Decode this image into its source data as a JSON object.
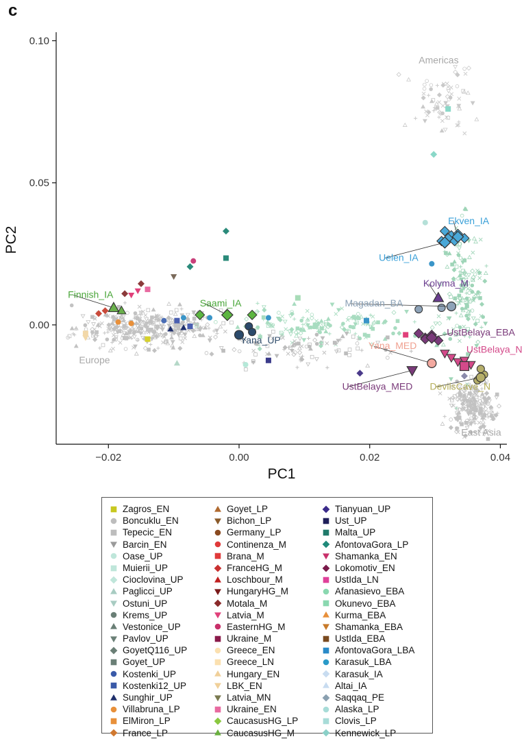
{
  "panel_label": "c",
  "chart_data": {
    "type": "scatter",
    "xlabel": "PC1",
    "ylabel": "PC2",
    "xlim": [
      -0.028,
      0.041
    ],
    "ylim": [
      -0.042,
      0.103
    ],
    "xticks": [
      -0.02,
      0.0,
      0.02,
      0.04
    ],
    "xtick_labels": [
      "−0.02",
      "0.00",
      "0.02",
      "0.04"
    ],
    "yticks": [
      0.0,
      0.05,
      0.1
    ],
    "ytick_labels": [
      "0.00",
      "0.05",
      "0.10"
    ],
    "grid": false,
    "legend_position": "bottom",
    "region_labels": [
      {
        "text": "Americas",
        "x": 0.0275,
        "y": 0.092
      },
      {
        "text": "Europe",
        "x": -0.0245,
        "y": -0.0135
      },
      {
        "text": "East Asia",
        "x": 0.034,
        "y": -0.039
      }
    ],
    "background_clouds": [
      {
        "name": "europe",
        "color": "#c2c2c2",
        "cx": -0.014,
        "cy": -0.001,
        "sx": 0.0055,
        "sy": 0.0035,
        "n": 340
      },
      {
        "name": "eastasia",
        "color": "#c2c2c2",
        "cx": 0.0355,
        "cy": -0.029,
        "sx": 0.0018,
        "sy": 0.0045,
        "n": 220
      },
      {
        "name": "americas",
        "color": "#c9c9c9",
        "cx": 0.031,
        "cy": 0.078,
        "sx": 0.0025,
        "sy": 0.006,
        "n": 70
      },
      {
        "name": "siberia",
        "color": "#9fd5b8",
        "cx": 0.0345,
        "cy": 0.012,
        "sx": 0.0015,
        "sy": 0.011,
        "n": 160
      },
      {
        "name": "cline",
        "color": "#a8dcc0",
        "cx": 0.012,
        "cy": 0.0,
        "sx": 0.0075,
        "sy": 0.0028,
        "n": 160
      },
      {
        "name": "cline-grey",
        "color": "#bdbdbd",
        "cx": 0.008,
        "cy": -0.008,
        "sx": 0.007,
        "sy": 0.003,
        "n": 90
      }
    ],
    "highlighted": [
      {
        "label": "Finnish_IA",
        "x": -0.0192,
        "y": 0.006,
        "marker": "triangle",
        "color": "#6ab04c",
        "label_color": "#4aa63a",
        "lx": -0.0262,
        "ly": 0.0095
      },
      {
        "label": "Saami_IA",
        "x": -0.0018,
        "y": 0.0035,
        "marker": "diamond",
        "color": "#5cb541",
        "label_color": "#4aa63a",
        "lx": -0.006,
        "ly": 0.0065
      },
      {
        "label": "Yana_UP",
        "x": 0.0,
        "y": -0.0035,
        "marker": "circle",
        "color": "#2b4a6b",
        "label_color": "#34506e",
        "lx": 0.0002,
        "ly": -0.0065
      },
      {
        "label": "Ekven_IA",
        "x": 0.0335,
        "y": 0.031,
        "marker": "diamond",
        "color": "#4aa8d8",
        "label_color": "#3aa0d8",
        "lx": 0.032,
        "ly": 0.0355
      },
      {
        "label": "Uelen_IA",
        "x": 0.0315,
        "y": 0.029,
        "marker": "diamond",
        "color": "#4aa8d8",
        "label_color": "#3aa0d8",
        "lx": 0.0214,
        "ly": 0.0225
      },
      {
        "label": "Kolyma_M",
        "x": 0.0305,
        "y": 0.0095,
        "marker": "triangle",
        "color": "#6a3d8f",
        "label_color": "#6a3d8f",
        "lx": 0.0282,
        "ly": 0.0135
      },
      {
        "label": "Magadan_BA",
        "x": 0.0325,
        "y": 0.0065,
        "marker": "circle",
        "color": "#8ea3b8",
        "label_color": "#8aa0b5",
        "lx": 0.0162,
        "ly": 0.0065
      },
      {
        "label": "UstBelaya_EBA",
        "x": 0.0295,
        "y": -0.0045,
        "marker": "diamond",
        "color": "#7a3a7a",
        "label_color": "#7a3a7a",
        "lx": 0.0318,
        "ly": -0.0038
      },
      {
        "label": "Yana_MED",
        "x": 0.0295,
        "y": -0.0135,
        "marker": "circle",
        "color": "#f3a9a0",
        "label_color": "#f0a090",
        "lx": 0.0198,
        "ly": -0.0085
      },
      {
        "label": "UstBelaya_N",
        "x": 0.0345,
        "y": -0.0145,
        "marker": "square",
        "color": "#d44a8a",
        "label_color": "#d44a8a",
        "lx": 0.0348,
        "ly": -0.0098
      },
      {
        "label": "UstBelaya_MED",
        "x": 0.0265,
        "y": -0.016,
        "marker": "triangle-down",
        "color": "#7a3a7a",
        "label_color": "#7a3a7a",
        "lx": 0.0158,
        "ly": -0.0228
      },
      {
        "label": "DevilsCave_N",
        "x": 0.037,
        "y": -0.0185,
        "marker": "circle",
        "color": "#b5ae6a",
        "label_color": "#b5ae5a",
        "lx": 0.0292,
        "ly": -0.0228
      }
    ],
    "highlight_clusters": [
      {
        "marker": "diamond",
        "color": "#4aa8d8",
        "points": [
          [
            0.0315,
            0.033
          ],
          [
            0.0325,
            0.0315
          ],
          [
            0.0335,
            0.032
          ],
          [
            0.0345,
            0.0305
          ],
          [
            0.031,
            0.0295
          ],
          [
            0.033,
            0.0295
          ],
          [
            0.032,
            0.0305
          ]
        ]
      },
      {
        "marker": "diamond",
        "color": "#7a3a7a",
        "points": [
          [
            0.0275,
            -0.003
          ],
          [
            0.0285,
            -0.0045
          ],
          [
            0.0295,
            -0.0035
          ],
          [
            0.0305,
            -0.0055
          ],
          [
            0.0285,
            -0.005
          ]
        ]
      },
      {
        "marker": "circle",
        "color": "#b5ae6a",
        "points": [
          [
            0.0365,
            -0.0195
          ],
          [
            0.0375,
            -0.0175
          ],
          [
            0.037,
            -0.0155
          ]
        ]
      },
      {
        "marker": "triangle-down",
        "color": "#d44a8a",
        "points": [
          [
            0.0325,
            -0.0115
          ],
          [
            0.0335,
            -0.013
          ],
          [
            0.0345,
            -0.0125
          ],
          [
            0.0315,
            -0.01
          ],
          [
            0.0355,
            -0.014
          ]
        ]
      },
      {
        "marker": "circle",
        "color": "#8ea3b8",
        "points": [
          [
            0.0275,
            0.0055
          ],
          [
            0.031,
            0.006
          ]
        ]
      },
      {
        "marker": "circle",
        "color": "#2b4a6b",
        "points": [
          [
            0.0015,
            -0.0005
          ],
          [
            0.002,
            -0.0025
          ]
        ]
      },
      {
        "marker": "diamond",
        "color": "#5cb541",
        "points": [
          [
            -0.006,
            0.0035
          ],
          [
            0.002,
            0.0035
          ]
        ]
      },
      {
        "marker": "triangle",
        "color": "#6ab04c",
        "points": [
          [
            -0.018,
            0.005
          ]
        ]
      }
    ],
    "scattered_points": [
      {
        "x": -0.0215,
        "y": 0.004,
        "marker": "diamond",
        "color": "#c94a3a"
      },
      {
        "x": -0.0205,
        "y": 0.005,
        "marker": "diamond",
        "color": "#c94a3a"
      },
      {
        "x": -0.0175,
        "y": 0.011,
        "marker": "diamond",
        "color": "#8b3a3a"
      },
      {
        "x": -0.015,
        "y": 0.0145,
        "marker": "diamond",
        "color": "#8b3a3a"
      },
      {
        "x": -0.0165,
        "y": 0.0105,
        "marker": "triangle-down",
        "color": "#e0407a"
      },
      {
        "x": -0.0155,
        "y": 0.012,
        "marker": "triangle-down",
        "color": "#e0407a"
      },
      {
        "x": -0.014,
        "y": 0.0125,
        "marker": "square",
        "color": "#e86aa0"
      },
      {
        "x": -0.0185,
        "y": 0.001,
        "marker": "circle",
        "color": "#e8903a"
      },
      {
        "x": -0.0165,
        "y": 0.0005,
        "marker": "circle",
        "color": "#e8903a"
      },
      {
        "x": -0.014,
        "y": -0.005,
        "marker": "square",
        "color": "#d6d12a"
      },
      {
        "x": -0.0115,
        "y": 0.0015,
        "marker": "circle",
        "color": "#4a6db5"
      },
      {
        "x": -0.0105,
        "y": -0.0015,
        "marker": "triangle",
        "color": "#1f2f6b"
      },
      {
        "x": -0.0085,
        "y": -0.001,
        "marker": "triangle",
        "color": "#1f2f6b"
      },
      {
        "x": -0.0095,
        "y": 0.0015,
        "marker": "square",
        "color": "#4a5fb0"
      },
      {
        "x": -0.0075,
        "y": -0.0005,
        "marker": "square",
        "color": "#4a5fb0"
      },
      {
        "x": -0.0085,
        "y": 0.0025,
        "marker": "circle",
        "color": "#3a95c8"
      },
      {
        "x": -0.0045,
        "y": 0.0025,
        "marker": "circle",
        "color": "#3a95c8"
      },
      {
        "x": -0.01,
        "y": 0.017,
        "marker": "triangle-down",
        "color": "#7a6a5a"
      },
      {
        "x": -0.0075,
        "y": 0.0205,
        "marker": "diamond",
        "color": "#2a8a7a"
      },
      {
        "x": -0.007,
        "y": 0.0225,
        "marker": "circle",
        "color": "#c8407a"
      },
      {
        "x": -0.002,
        "y": 0.033,
        "marker": "diamond",
        "color": "#2a8a7a"
      },
      {
        "x": -0.002,
        "y": 0.0235,
        "marker": "square",
        "color": "#2a8a7a"
      },
      {
        "x": -0.0095,
        "y": -0.0135,
        "marker": "triangle",
        "color": "#b5d8c8"
      },
      {
        "x": 0.001,
        "y": -0.014,
        "marker": "circle",
        "color": "#b5e8d8"
      },
      {
        "x": 0.0045,
        "y": -0.0125,
        "marker": "square",
        "color": "#3a3a8a"
      },
      {
        "x": 0.0045,
        "y": 0.0025,
        "marker": "circle",
        "color": "#3a95c8"
      },
      {
        "x": 0.009,
        "y": 0.0095,
        "marker": "square",
        "color": "#a8dcb8"
      },
      {
        "x": 0.0195,
        "y": 0.0015,
        "marker": "square",
        "color": "#3a95c8"
      },
      {
        "x": 0.0185,
        "y": -0.017,
        "marker": "diamond",
        "color": "#4a3a8a"
      },
      {
        "x": 0.0255,
        "y": -0.0035,
        "marker": "square",
        "color": "#e0407a"
      },
      {
        "x": 0.0295,
        "y": 0.0215,
        "marker": "circle",
        "color": "#3a95c8"
      },
      {
        "x": 0.0285,
        "y": 0.036,
        "marker": "circle",
        "color": "#b5e0d8"
      },
      {
        "x": 0.0298,
        "y": 0.06,
        "marker": "diamond",
        "color": "#8ad8c8"
      },
      {
        "x": 0.032,
        "y": 0.076,
        "marker": "square",
        "color": "#8ad8c8"
      },
      {
        "x": 0.0345,
        "y": -0.018,
        "marker": "diamond",
        "color": "#8a8aaa"
      },
      {
        "x": -0.0235,
        "y": -0.003,
        "marker": "square",
        "color": "#f2d8a8"
      },
      {
        "x": -0.0235,
        "y": -0.0045,
        "marker": "triangle-down",
        "color": "#f2d8a8"
      }
    ]
  },
  "legend": {
    "columns": [
      [
        {
          "label": "Zagros_EN",
          "marker": "square",
          "color": "#c8c820"
        },
        {
          "label": "Boncuklu_EN",
          "marker": "circle",
          "color": "#bdbdbd"
        },
        {
          "label": "Tepecic_EN",
          "marker": "square",
          "color": "#bdbdbd"
        },
        {
          "label": "Barcin_EN",
          "marker": "triangle-down",
          "color": "#9a9a9a"
        },
        {
          "label": "Oase_UP",
          "marker": "circle",
          "color": "#bfe6da"
        },
        {
          "label": "Muierii_UP",
          "marker": "square",
          "color": "#bfe6da"
        },
        {
          "label": "Cioclovina_UP",
          "marker": "diamond",
          "color": "#bfe6da"
        },
        {
          "label": "Paglicci_UP",
          "marker": "triangle",
          "color": "#a8ccc2"
        },
        {
          "label": "Ostuni_UP",
          "marker": "triangle-down",
          "color": "#a8ccc2"
        },
        {
          "label": "Krems_UP",
          "marker": "circle",
          "color": "#6a7f76"
        },
        {
          "label": "Vestonice_UP",
          "marker": "triangle",
          "color": "#6a7f76"
        },
        {
          "label": "Pavlov_UP",
          "marker": "triangle-down",
          "color": "#6a7f76"
        },
        {
          "label": "GoyetQ116_UP",
          "marker": "diamond",
          "color": "#6a7f76"
        },
        {
          "label": "Goyet_UP",
          "marker": "square",
          "color": "#6a7f76"
        },
        {
          "label": "Kostenki_UP",
          "marker": "circle",
          "color": "#3a5aa8"
        },
        {
          "label": "Kostenki12_UP",
          "marker": "square",
          "color": "#3a5aa8"
        },
        {
          "label": "Sunghir_UP",
          "marker": "triangle",
          "color": "#1f2f6b"
        },
        {
          "label": "Villabruna_LP",
          "marker": "circle",
          "color": "#e8903a"
        },
        {
          "label": "ElMiron_LP",
          "marker": "square",
          "color": "#e8903a"
        },
        {
          "label": "France_LP",
          "marker": "diamond",
          "color": "#d07830"
        }
      ],
      [
        {
          "label": "Goyet_LP",
          "marker": "triangle",
          "color": "#b06a30"
        },
        {
          "label": "Bichon_LP",
          "marker": "triangle-down",
          "color": "#8a5a2a"
        },
        {
          "label": "Germany_LP",
          "marker": "circle",
          "color": "#8a4a20"
        },
        {
          "label": "Continenza_M",
          "marker": "circle",
          "color": "#e03a3a"
        },
        {
          "label": "Brana_M",
          "marker": "square",
          "color": "#e03a3a"
        },
        {
          "label": "FranceHG_M",
          "marker": "diamond",
          "color": "#c93030"
        },
        {
          "label": "Loschbour_M",
          "marker": "triangle",
          "color": "#c02020"
        },
        {
          "label": "HungaryHG_M",
          "marker": "triangle-down",
          "color": "#7a1a1a"
        },
        {
          "label": "Motala_M",
          "marker": "diamond",
          "color": "#8a2a2a"
        },
        {
          "label": "Latvia_M",
          "marker": "triangle-down",
          "color": "#e0407a"
        },
        {
          "label": "EasternHG_M",
          "marker": "circle",
          "color": "#c8306a"
        },
        {
          "label": "Ukraine_M",
          "marker": "square",
          "color": "#8a1a4a"
        },
        {
          "label": "Greece_EN",
          "marker": "circle",
          "color": "#fbe0b0"
        },
        {
          "label": "Greece_LN",
          "marker": "square",
          "color": "#fbe0b0"
        },
        {
          "label": "Hungary_EN",
          "marker": "triangle",
          "color": "#f0d09a"
        },
        {
          "label": "LBK_EN",
          "marker": "triangle-down",
          "color": "#f0d09a"
        },
        {
          "label": "Latvia_MN",
          "marker": "triangle-down",
          "color": "#7a7a50"
        },
        {
          "label": "Ukraine_EN",
          "marker": "square",
          "color": "#e86aa0"
        },
        {
          "label": "CaucasusHG_LP",
          "marker": "diamond",
          "color": "#8ac840"
        },
        {
          "label": "CaucasusHG_M",
          "marker": "triangle",
          "color": "#6ab040"
        }
      ],
      [
        {
          "label": "Tianyuan_UP",
          "marker": "diamond",
          "color": "#3a2a8a"
        },
        {
          "label": "Ust_UP",
          "marker": "square",
          "color": "#1f1f5a"
        },
        {
          "label": "Malta_UP",
          "marker": "square",
          "color": "#1f7a6a"
        },
        {
          "label": "AfontovaGora_LP",
          "marker": "diamond",
          "color": "#1f8a7a"
        },
        {
          "label": "Shamanka_EN",
          "marker": "triangle-down",
          "color": "#c8306a"
        },
        {
          "label": "Lokomotiv_EN",
          "marker": "diamond",
          "color": "#7a1a4a"
        },
        {
          "label": "UstIda_LN",
          "marker": "square",
          "color": "#e0409a"
        },
        {
          "label": "Afanasievo_EBA",
          "marker": "circle",
          "color": "#8ad8b0"
        },
        {
          "label": "Okunevo_EBA",
          "marker": "square",
          "color": "#8ad8b0"
        },
        {
          "label": "Kurma_EBA",
          "marker": "triangle",
          "color": "#e8903a"
        },
        {
          "label": "Shamanka_EBA",
          "marker": "triangle-down",
          "color": "#c87a2a"
        },
        {
          "label": "UstIda_EBA",
          "marker": "square",
          "color": "#7a4a20"
        },
        {
          "label": "AfontovaGora_LBA",
          "marker": "square",
          "color": "#2a8ac8"
        },
        {
          "label": "Karasuk_LBA",
          "marker": "circle",
          "color": "#2a9ac8"
        },
        {
          "label": "Karasuk_IA",
          "marker": "diamond",
          "color": "#c8dcf0"
        },
        {
          "label": "Altai_IA",
          "marker": "triangle",
          "color": "#c8dcf0"
        },
        {
          "label": "Saqqaq_PE",
          "marker": "diamond",
          "color": "#8aa0b0"
        },
        {
          "label": "Alaska_LP",
          "marker": "circle",
          "color": "#a8dcd8"
        },
        {
          "label": "Clovis_LP",
          "marker": "square",
          "color": "#a8dcd8"
        },
        {
          "label": "Kennewick_LP",
          "marker": "diamond",
          "color": "#8ad0c8"
        }
      ]
    ]
  }
}
